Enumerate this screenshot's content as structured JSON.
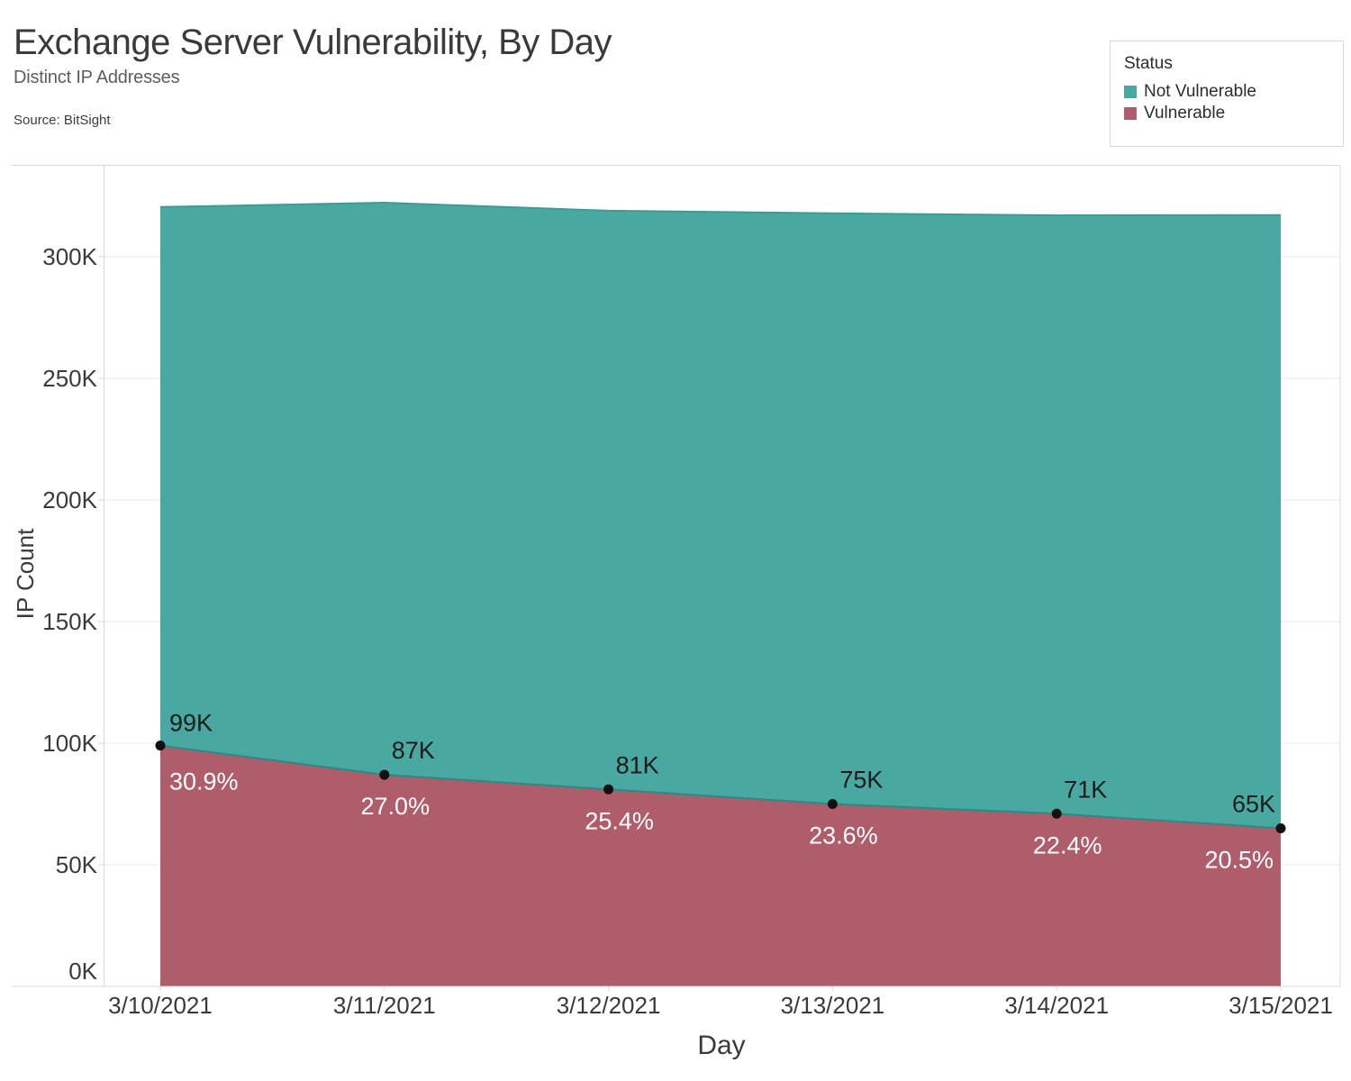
{
  "header": {
    "title": "Exchange Server Vulnerability, By Day",
    "subtitle": "Distinct IP Addresses",
    "source": "Source: BitSight"
  },
  "legend": {
    "title": "Status",
    "items": [
      {
        "label": "Not Vulnerable",
        "color": "#4AA8A3"
      },
      {
        "label": "Vulnerable",
        "color": "#AF5C6B"
      }
    ]
  },
  "chart_data": {
    "type": "area",
    "stacked": true,
    "title": "Exchange Server Vulnerability, By Day",
    "subtitle": "Distinct IP Addresses",
    "xlabel": "Day",
    "ylabel": "IP Count",
    "x": [
      "3/10/2021",
      "3/11/2021",
      "3/12/2021",
      "3/13/2021",
      "3/14/2021",
      "3/15/2021"
    ],
    "series": [
      {
        "name": "Not Vulnerable",
        "color": "#4AA8A3",
        "values": [
          221400,
          235200,
          237900,
          242800,
          246000,
          252100
        ]
      },
      {
        "name": "Vulnerable",
        "color": "#AF5C6B",
        "values": [
          99000,
          87000,
          81000,
          75000,
          71000,
          65000
        ]
      }
    ],
    "percent_vulnerable": [
      30.9,
      27.0,
      25.4,
      23.6,
      22.4,
      20.5
    ],
    "point_labels": {
      "values": [
        "99K",
        "87K",
        "81K",
        "75K",
        "71K",
        "65K"
      ],
      "percents": [
        "30.9%",
        "27.0%",
        "25.4%",
        "23.6%",
        "22.4%",
        "20.5%"
      ]
    },
    "yticks": {
      "labels": [
        "0K",
        "50K",
        "100K",
        "150K",
        "200K",
        "250K",
        "300K"
      ],
      "values": [
        0,
        50000,
        100000,
        150000,
        200000,
        250000,
        300000
      ]
    },
    "ylim": [
      0,
      337000
    ],
    "grid": true,
    "legend_position": "top-right",
    "colors": {
      "not_vulnerable_fill": "#4AA8A3",
      "vulnerable_fill": "#AF5C6B",
      "edge_stroke_top": "#3D9A95",
      "edge_stroke_boundary": "#2F8A85",
      "dot": "#111111",
      "grid_line": "#e9e9e9",
      "pane_border": "#d8d8d8",
      "axis_text": "#3a3a3a",
      "value_label": "#1c1c1c",
      "percent_label": "#ffffff"
    }
  }
}
